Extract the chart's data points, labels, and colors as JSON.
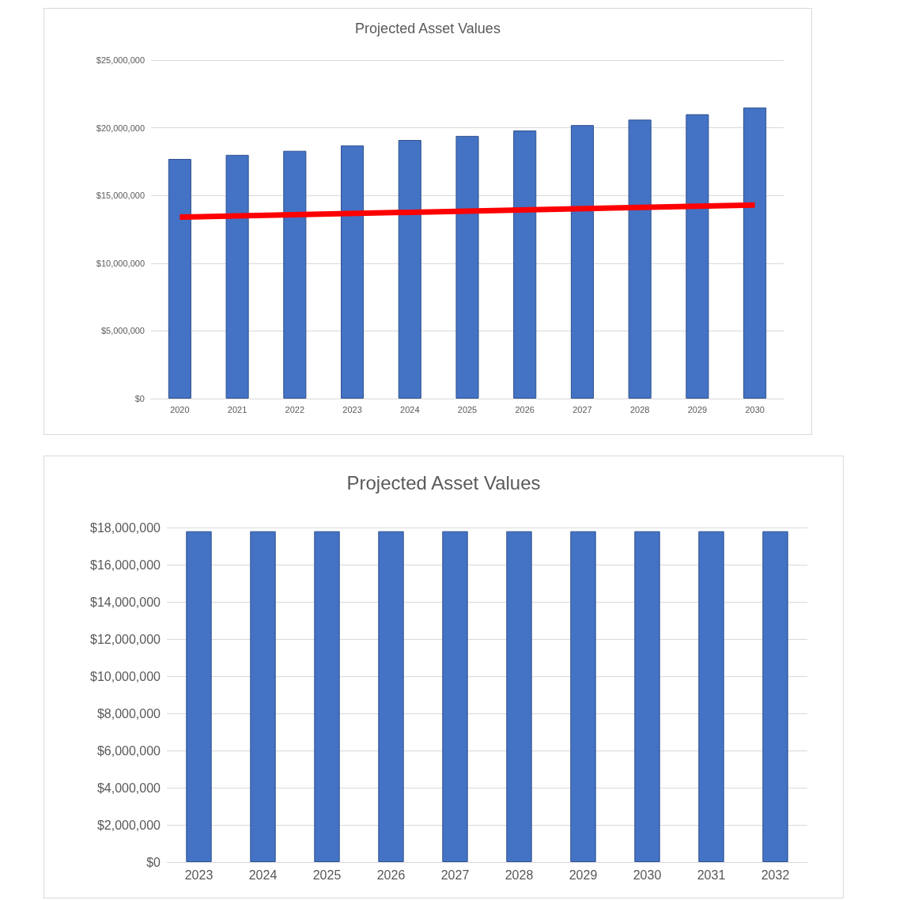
{
  "chart_data": [
    {
      "type": "bar",
      "title": "Projected Asset Values",
      "categories": [
        "2020",
        "2021",
        "2022",
        "2023",
        "2024",
        "2025",
        "2026",
        "2027",
        "2028",
        "2029",
        "2030"
      ],
      "series": [
        {
          "color": "#4472c4",
          "values": [
            17700000,
            18000000,
            18300000,
            18700000,
            19100000,
            19400000,
            19800000,
            20200000,
            20600000,
            21000000,
            21500000
          ]
        },
        {
          "type": "line",
          "color": "#ff0000",
          "values": [
            13400000,
            null,
            null,
            null,
            null,
            null,
            null,
            null,
            null,
            null,
            14300000
          ]
        }
      ],
      "ylim": [
        0,
        25000000
      ],
      "yticks": [
        {
          "value": 0,
          "label": "$0"
        },
        {
          "value": 5000000,
          "label": "$5,000,000"
        },
        {
          "value": 10000000,
          "label": "$10,000,000"
        },
        {
          "value": 15000000,
          "label": "$15,000,000"
        },
        {
          "value": 20000000,
          "label": "$20,000,000"
        },
        {
          "value": 25000000,
          "label": "$25,000,000"
        }
      ],
      "grid": "y"
    },
    {
      "type": "bar",
      "title": "Projected Asset Values",
      "categories": [
        "2023",
        "2024",
        "2025",
        "2026",
        "2027",
        "2028",
        "2029",
        "2030",
        "2031",
        "2032"
      ],
      "series": [
        {
          "color": "#4472c4",
          "values": [
            17800000,
            17800000,
            17800000,
            17800000,
            17800000,
            17800000,
            17800000,
            17800000,
            17800000,
            17800000
          ]
        }
      ],
      "ylim": [
        0,
        18000000
      ],
      "yticks": [
        {
          "value": 0,
          "label": "$0"
        },
        {
          "value": 2000000,
          "label": "$2,000,000"
        },
        {
          "value": 4000000,
          "label": "$4,000,000"
        },
        {
          "value": 6000000,
          "label": "$6,000,000"
        },
        {
          "value": 8000000,
          "label": "$8,000,000"
        },
        {
          "value": 10000000,
          "label": "$10,000,000"
        },
        {
          "value": 12000000,
          "label": "$12,000,000"
        },
        {
          "value": 14000000,
          "label": "$14,000,000"
        },
        {
          "value": 16000000,
          "label": "$16,000,000"
        },
        {
          "value": 18000000,
          "label": "$18,000,000"
        }
      ],
      "grid": "y"
    }
  ]
}
